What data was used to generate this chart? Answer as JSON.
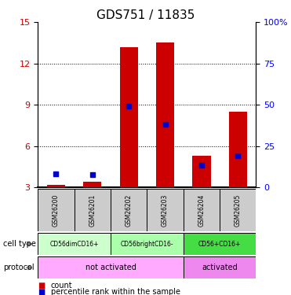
{
  "title": "GDS751 / 11835",
  "samples": [
    "GSM26200",
    "GSM26201",
    "GSM26202",
    "GSM26203",
    "GSM26204",
    "GSM26205"
  ],
  "red_counts": [
    3.2,
    3.4,
    13.2,
    13.5,
    5.3,
    8.5
  ],
  "blue_percentiles": [
    4.0,
    3.9,
    8.9,
    7.6,
    4.6,
    5.3
  ],
  "ylim_left": [
    3,
    15
  ],
  "ylim_right": [
    0,
    100
  ],
  "yticks_left": [
    3,
    6,
    9,
    12,
    15
  ],
  "yticks_right": [
    0,
    25,
    50,
    75,
    100
  ],
  "ytick_labels_right": [
    "0",
    "25",
    "50",
    "75",
    "100%"
  ],
  "bar_color_red": "#cc0000",
  "bar_color_blue": "#0000cc",
  "cell_type_groups": [
    {
      "label": "CD56dimCD16+",
      "span": [
        0,
        2
      ],
      "color": "#ccffcc"
    },
    {
      "label": "CD56brightCD16-",
      "span": [
        2,
        4
      ],
      "color": "#aaffaa"
    },
    {
      "label": "CD56+CD16+",
      "span": [
        4,
        6
      ],
      "color": "#44dd44"
    }
  ],
  "protocol_groups": [
    {
      "label": "not activated",
      "span": [
        0,
        4
      ],
      "color": "#ffaaff"
    },
    {
      "label": "activated",
      "span": [
        4,
        6
      ],
      "color": "#ee88ee"
    }
  ],
  "sample_box_color": "#cccccc",
  "legend_count_color": "#cc0000",
  "legend_pct_color": "#0000cc",
  "legend_count_label": "count",
  "legend_pct_label": "percentile rank within the sample",
  "cell_type_label": "cell type",
  "protocol_label": "protocol",
  "title_fontsize": 11,
  "tick_fontsize": 8
}
